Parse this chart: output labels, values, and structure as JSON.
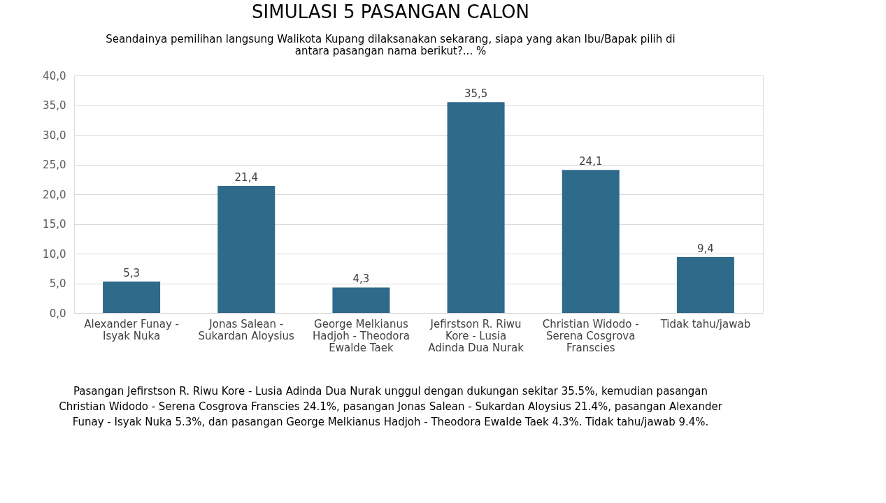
{
  "chart_data": {
    "type": "bar",
    "title": "SIMULASI 5 PASANGAN CALON",
    "subtitle": "Seandainya pemilihan langsung Walikota Kupang dilaksanakan sekarang, siapa yang akan Ibu/Bapak pilih di antara pasangan nama berikut?... %",
    "categories": [
      "Alexander Funay - Isyak Nuka",
      "Jonas Salean - Sukardan Aloysius",
      "George Melkianus Hadjoh - Theodora Ewalde Taek",
      "Jefirstson R. Riwu Kore - Lusia Adinda Dua Nurak",
      "Christian Widodo - Serena Cosgrova Franscies",
      "Tidak tahu/jawab"
    ],
    "values": [
      5.3,
      21.4,
      4.3,
      35.5,
      24.1,
      9.4
    ],
    "value_labels": [
      "5,3",
      "21,4",
      "4,3",
      "35,5",
      "24,1",
      "9,4"
    ],
    "color": "#2e6a8a",
    "ylim": [
      0,
      40
    ],
    "yticks": [
      {
        "value": 0,
        "label": "0,0"
      },
      {
        "value": 5,
        "label": "5,0"
      },
      {
        "value": 10,
        "label": "10,0"
      },
      {
        "value": 15,
        "label": "15,0"
      },
      {
        "value": 20,
        "label": "20,0"
      },
      {
        "value": 25,
        "label": "25,0"
      },
      {
        "value": 30,
        "label": "30,0"
      },
      {
        "value": 35,
        "label": "35,0"
      },
      {
        "value": 40,
        "label": "40,0"
      }
    ],
    "grid": "y",
    "annotations": [
      "Pasangan Jefirstson R. Riwu Kore - Lusia Adinda Dua Nurak unggul dengan dukungan sekitar 35.5%, kemudian pasangan Christian Widodo - Serena Cosgrova Franscies 24.1%, pasangan Jonas Salean - Sukardan Aloysius 21.4%, pasangan Alexander Funay - Isyak Nuka 5.3%, dan pasangan George Melkianus Hadjoh - Theodora Ewalde Taek 4.3%. Tidak tahu/jawab 9.4%."
    ]
  }
}
